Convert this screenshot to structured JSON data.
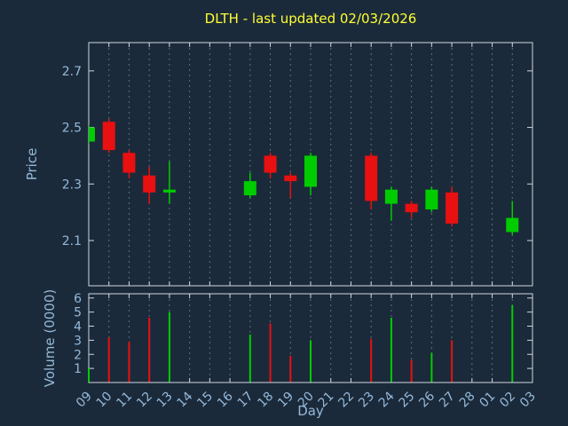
{
  "chart_data": {
    "type": "candlestick+volume",
    "title": "DLTH - last updated 02/03/2026",
    "xlabel": "Day",
    "ylabel_price": "Price",
    "ylabel_volume": "Volume (0000)",
    "x_categories": [
      "09",
      "10",
      "11",
      "12",
      "13",
      "14",
      "15",
      "16",
      "17",
      "18",
      "19",
      "20",
      "21",
      "22",
      "23",
      "24",
      "25",
      "26",
      "27",
      "28",
      "01",
      "02",
      "03"
    ],
    "price_axis": {
      "ticks": [
        2.1,
        2.3,
        2.5,
        2.7
      ],
      "range": [
        1.94,
        2.8
      ]
    },
    "volume_axis": {
      "ticks": [
        1,
        2,
        3,
        4,
        5,
        6
      ],
      "range": [
        0,
        6.3
      ]
    },
    "grid": "vertical-dashed",
    "legend": "none",
    "candles": [
      {
        "day": "09",
        "open": 2.45,
        "high": 2.51,
        "low": 2.44,
        "close": 2.5,
        "volume": 1.0
      },
      {
        "day": "10",
        "open": 2.52,
        "high": 2.53,
        "low": 2.41,
        "close": 2.42,
        "volume": 3.2
      },
      {
        "day": "11",
        "open": 2.41,
        "high": 2.42,
        "low": 2.32,
        "close": 2.34,
        "volume": 2.9
      },
      {
        "day": "12",
        "open": 2.33,
        "high": 2.36,
        "low": 2.23,
        "close": 2.27,
        "volume": 4.6
      },
      {
        "day": "13",
        "open": 2.27,
        "high": 2.38,
        "low": 2.23,
        "close": 2.28,
        "volume": 5.0
      },
      {
        "day": "17",
        "open": 2.26,
        "high": 2.34,
        "low": 2.25,
        "close": 2.31,
        "volume": 3.4
      },
      {
        "day": "18",
        "open": 2.4,
        "high": 2.41,
        "low": 2.32,
        "close": 2.34,
        "volume": 4.2
      },
      {
        "day": "19",
        "open": 2.33,
        "high": 2.34,
        "low": 2.25,
        "close": 2.31,
        "volume": 1.9
      },
      {
        "day": "20",
        "open": 2.29,
        "high": 2.41,
        "low": 2.26,
        "close": 2.4,
        "volume": 3.0
      },
      {
        "day": "23",
        "open": 2.4,
        "high": 2.41,
        "low": 2.21,
        "close": 2.24,
        "volume": 3.1
      },
      {
        "day": "24",
        "open": 2.23,
        "high": 2.29,
        "low": 2.17,
        "close": 2.28,
        "volume": 4.6
      },
      {
        "day": "25",
        "open": 2.23,
        "high": 2.24,
        "low": 2.18,
        "close": 2.2,
        "volume": 1.6
      },
      {
        "day": "26",
        "open": 2.21,
        "high": 2.29,
        "low": 2.2,
        "close": 2.28,
        "volume": 2.1
      },
      {
        "day": "27",
        "open": 2.27,
        "high": 2.29,
        "low": 2.15,
        "close": 2.16,
        "volume": 3.0
      },
      {
        "day": "02",
        "open": 2.13,
        "high": 2.24,
        "low": 2.12,
        "close": 2.18,
        "volume": 5.5
      }
    ],
    "colors": {
      "background": "#1b2a3a",
      "title": "#ffff33",
      "axis_text": "#94b9da",
      "border": "#cfd6dd",
      "grid": "#5c6f80",
      "up": "#00cc00",
      "down": "#e81010"
    }
  }
}
